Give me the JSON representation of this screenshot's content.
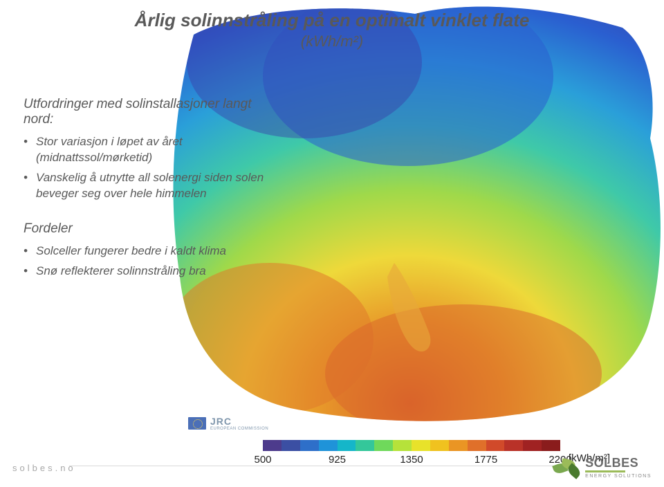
{
  "title": {
    "main": "Årlig solinnstråling på en optimalt vinklet flate",
    "sub": "(kWh/m²)"
  },
  "section1": {
    "heading": "Utfordringer med solinstallasjoner langt nord:",
    "bullets": [
      "Stor variasjon i løpet av året (midnattssol/mørketid)",
      "Vanskelig å utnytte all solenergi siden solen beveger seg over hele himmelen"
    ]
  },
  "section2": {
    "heading": "Fordeler",
    "bullets": [
      "Solceller fungerer bedre i kaldt klima",
      "Snø reflekterer solinnstråling bra"
    ]
  },
  "jrc": {
    "label": "JRC",
    "sub": "EUROPEAN COMMISSION"
  },
  "legend": {
    "colors": [
      "#4d3b8c",
      "#3b4fa3",
      "#2e6fc9",
      "#1f93d9",
      "#15b6c9",
      "#34c79a",
      "#6fd95b",
      "#b6e23a",
      "#e8e22a",
      "#f0c21f",
      "#ea9524",
      "#e0702a",
      "#d14a2a",
      "#b93228",
      "#a02222",
      "#8a1c1c"
    ],
    "ticks": [
      {
        "pos": 0,
        "label": "500"
      },
      {
        "pos": 25,
        "label": "925"
      },
      {
        "pos": 50,
        "label": "1350"
      },
      {
        "pos": 75,
        "label": "1775"
      },
      {
        "pos": 100,
        "label": "2200"
      }
    ],
    "unit": "[kWh/m²]"
  },
  "footer": {
    "site": "solbes.no",
    "brand": "SOLBES",
    "brand_sub": "ENERGY SOLUTIONS"
  }
}
